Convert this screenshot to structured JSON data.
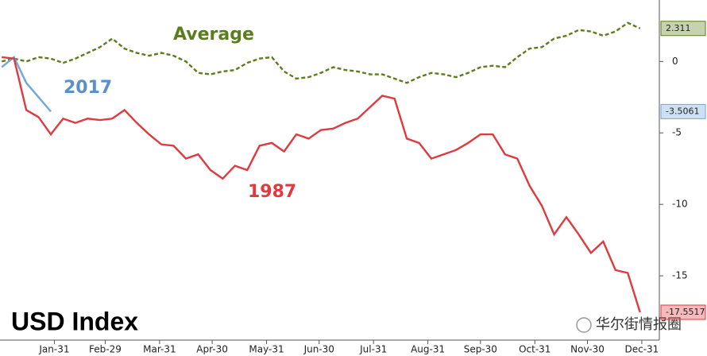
{
  "chart_data": {
    "type": "line",
    "title": "USD Index",
    "watermark": "华尔街情报圈",
    "x": [
      1,
      8,
      15,
      22,
      29,
      36,
      43,
      50,
      57,
      64,
      71,
      78,
      85,
      92,
      99,
      106,
      113,
      120,
      127,
      134,
      141,
      148,
      155,
      162,
      169,
      176,
      183,
      190,
      197,
      204,
      211,
      218,
      225,
      232,
      239,
      246,
      253,
      260,
      267,
      274,
      281,
      288,
      295,
      302,
      309,
      316,
      323,
      330,
      337,
      344,
      351,
      358,
      365
    ],
    "xlim": [
      0,
      376
    ],
    "xticks": [
      {
        "value": 31,
        "label": "Jan-31"
      },
      {
        "value": 60,
        "label": "Feb-29"
      },
      {
        "value": 91,
        "label": "Mar-31"
      },
      {
        "value": 121,
        "label": "Apr-30"
      },
      {
        "value": 152,
        "label": "May-31"
      },
      {
        "value": 182,
        "label": "Jun-30"
      },
      {
        "value": 213,
        "label": "Jul-31"
      },
      {
        "value": 244,
        "label": "Aug-31"
      },
      {
        "value": 274,
        "label": "Sep-30"
      },
      {
        "value": 305,
        "label": "Oct-31"
      },
      {
        "value": 335,
        "label": "Nov-30"
      },
      {
        "value": 366,
        "label": "Dec-31"
      }
    ],
    "ylim": [
      -19.5,
      4.3
    ],
    "yticks": [
      0,
      -5,
      -10,
      -15
    ],
    "series": [
      {
        "name": "Average",
        "color": "#5b7d1c",
        "dashed": true,
        "values": [
          0,
          0.2,
          0,
          0.3,
          0.2,
          -0.1,
          0.2,
          0.6,
          1,
          1.6,
          0.9,
          0.6,
          0.4,
          0.6,
          0.4,
          0,
          -0.8,
          -0.9,
          -0.7,
          -0.6,
          -0.1,
          0.2,
          0.3,
          -0.7,
          -1.2,
          -1.1,
          -0.8,
          -0.4,
          -0.6,
          -0.7,
          -0.9,
          -0.9,
          -1.2,
          -1.5,
          -1.1,
          -0.8,
          -0.9,
          -1.1,
          -0.8,
          -0.4,
          -0.3,
          -0.4,
          0.3,
          0.9,
          1,
          1.6,
          1.8,
          2.2,
          2.1,
          1.8,
          2.1,
          2.7,
          2.311
        ]
      },
      {
        "name": "2017",
        "color": "#6fa8dc",
        "values": [
          -0.4,
          0.3,
          -1.5,
          -2.5,
          -3.5061,
          null,
          null,
          null,
          null,
          null,
          null,
          null,
          null,
          null,
          null,
          null,
          null,
          null,
          null,
          null,
          null,
          null,
          null,
          null,
          null,
          null,
          null,
          null,
          null,
          null,
          null,
          null,
          null,
          null,
          null,
          null,
          null,
          null,
          null,
          null,
          null,
          null,
          null,
          null,
          null,
          null,
          null,
          null,
          null,
          null,
          null,
          null,
          null
        ]
      },
      {
        "name": "1987",
        "color": "#e0393e",
        "values": [
          0.3,
          0.2,
          -3.4,
          -3.9,
          -5.1,
          -4,
          -4.3,
          -4,
          -4.1,
          -4,
          -3.4,
          -4.3,
          -5.1,
          -5.8,
          -5.9,
          -6.8,
          -6.5,
          -7.6,
          -8.2,
          -7.3,
          -7.6,
          -5.9,
          -5.7,
          -6.3,
          -5.1,
          -5.4,
          -4.8,
          -4.7,
          -4.3,
          -4,
          -3.2,
          -2.4,
          -2.6,
          -5.4,
          -5.7,
          -6.8,
          -6.5,
          -6.2,
          -5.7,
          -5.1,
          -5.1,
          -6.5,
          -6.8,
          -8.7,
          -10.1,
          -12.1,
          -10.9,
          -12.1,
          -13.4,
          -12.6,
          -14.6,
          -14.8,
          -17.5517
        ]
      }
    ]
  }
}
